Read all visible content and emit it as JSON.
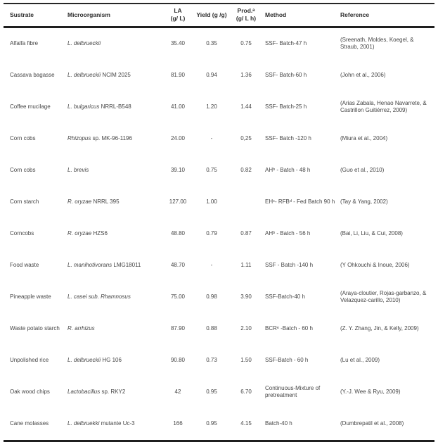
{
  "table": {
    "headers": {
      "substrate": "Sustrate",
      "microorganism": "Microorganism",
      "la_line1": "LA",
      "la_line2": "(g/ L)",
      "yield": "Yield (g /g)",
      "prod_line1": "Prod.ᵃ",
      "prod_line2": "(g/ L h)",
      "method": "Method",
      "reference": "Reference"
    },
    "rows": [
      {
        "substrate": "Alfalfa fibre",
        "organism_italic": "L. delbrueckii",
        "organism_plain": "",
        "la": "35.40",
        "yield": "0.35",
        "prod": "0.75",
        "method": "SSF- Batch-47 h",
        "reference": "(Sreenath, Moldes, Koegel, & Straub, 2001)"
      },
      {
        "substrate": "Cassava bagasse",
        "organism_italic": "L. delbrueckii",
        "organism_plain": "NCIM 2025",
        "la": "81.90",
        "yield": "0.94",
        "prod": "1.36",
        "method": "SSF- Batch-60 h",
        "reference": "(John et al., 2006)"
      },
      {
        "substrate": "Coffee mucilage",
        "organism_italic": "L. bulgaricus",
        "organism_plain": "NRRL-B548",
        "la": "41.00",
        "yield": "1.20",
        "prod": "1.44",
        "method": "SSF- Batch-25 h",
        "reference": "(Arias Zabala, Henao Navarrete, & Castrillon Guitiérrez, 2009)"
      },
      {
        "substrate": "Corn cobs",
        "organism_italic": "Rhizopus",
        "organism_plain": "sp. MK-96-1196",
        "la": "24.00",
        "yield": "-",
        "prod": "0,25",
        "method": "SSF- Batch -120 h",
        "reference": "(Miura et al., 2004)"
      },
      {
        "substrate": "Corn cobs",
        "organism_italic": "L. brevis",
        "organism_plain": "",
        "la": "39.10",
        "yield": "0.75",
        "prod": "0.82",
        "method": "AHᵇ - Batch - 48 h",
        "reference": "(Guo et al., 2010)"
      },
      {
        "substrate": "Corn starch",
        "organism_italic": "R. oryzae",
        "organism_plain": "NRRL 395",
        "la": "127.00",
        "yield": "1.00",
        "prod": "",
        "method": "EHᶜ- RFBᵈ - Fed Batch 90 h",
        "reference": "(Tay & Yang, 2002)"
      },
      {
        "substrate": "Corncobs",
        "organism_italic": "R. oryzae",
        "organism_plain": "HZS6",
        "la": "48.80",
        "yield": "0.79",
        "prod": "0.87",
        "method": "AHᵇ - Batch - 56 h",
        "reference": "(Bai, Li, Liu, & Cui, 2008)"
      },
      {
        "substrate": "Food waste",
        "organism_italic": "L. manihotivorans",
        "organism_plain": "LMG18011",
        "la": "48.70",
        "yield": "-",
        "prod": "1.11",
        "method": "SSF - Batch -140 h",
        "reference": "(Y Ohkouchi & Inoue, 2006)"
      },
      {
        "substrate": "Pineapple waste",
        "organism_italic": "L. casei sub. Rhamnosus",
        "organism_plain": "",
        "la": "75.00",
        "yield": "0.98",
        "prod": "3.90",
        "method": "SSF-Batch-40 h",
        "reference": "(Araya-cloutier, Rojas-garbanzo, & Velazquez-carillo, 2010)"
      },
      {
        "substrate": "Waste potato starch",
        "organism_italic": "R. arrhizus",
        "organism_plain": "",
        "la": "87.90",
        "yield": "0.88",
        "prod": "2.10",
        "method": "BCRᵉ -Batch - 60 h",
        "reference": "(Z. Y. Zhang, Jin, & Kelly, 2009)"
      },
      {
        "substrate": "Unpolished rice",
        "organism_italic": "L. delbrueckii",
        "organism_plain": "HG 106",
        "la": "90.80",
        "yield": "0.73",
        "prod": "1.50",
        "method": "SSF-Batch - 60 h",
        "reference": "(Lu et al., 2009)"
      },
      {
        "substrate": "Oak wood chips",
        "organism_italic": "Lactobacillus",
        "organism_plain": "sp. RKY2",
        "la": "42",
        "yield": "0.95",
        "prod": "6.70",
        "method": "Continuous-Mixture of pretreatment",
        "reference": "(Y.-J. Wee & Ryu, 2009)"
      },
      {
        "substrate": "Cane molasses",
        "organism_italic": "L. delbruekki",
        "organism_plain": "mutante Uc-3",
        "la": "166",
        "yield": "0.95",
        "prod": "4.15",
        "method": "Batch-40 h",
        "reference": "(Dumbrepatil et al., 2008)"
      }
    ]
  }
}
